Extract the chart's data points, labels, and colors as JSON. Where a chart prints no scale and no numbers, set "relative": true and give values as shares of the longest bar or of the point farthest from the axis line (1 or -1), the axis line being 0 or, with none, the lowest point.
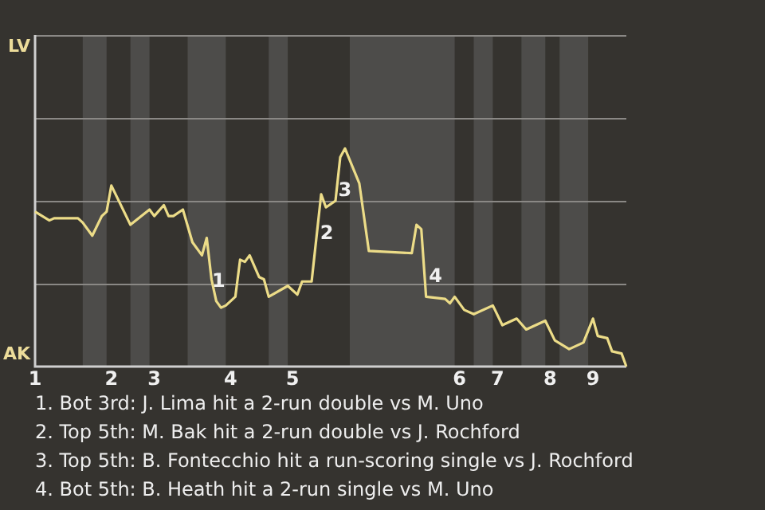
{
  "chart_data": {
    "type": "line",
    "relative": true,
    "categories": [
      "1",
      null,
      null,
      null,
      null,
      null,
      null,
      null,
      null,
      null,
      null,
      null,
      null,
      null,
      null,
      null,
      "2",
      null,
      null,
      null,
      null,
      null,
      null,
      null,
      null,
      "3",
      null,
      null,
      null,
      null,
      null,
      null,
      null,
      null,
      null,
      null,
      null,
      null,
      null,
      null,
      null,
      "4",
      null,
      null,
      null,
      null,
      null,
      null,
      null,
      null,
      null,
      null,
      null,
      null,
      "5",
      null,
      null,
      null,
      null,
      null,
      null,
      null,
      null,
      null,
      null,
      null,
      null,
      null,
      null,
      null,
      null,
      null,
      null,
      null,
      null,
      null,
      null,
      null,
      null,
      null,
      null,
      null,
      null,
      null,
      null,
      null,
      null,
      null,
      null,
      "6",
      null,
      null,
      null,
      null,
      null,
      null,
      null,
      "7",
      null,
      null,
      null,
      null,
      null,
      null,
      null,
      null,
      null,
      null,
      "8",
      null,
      null,
      null,
      null,
      null,
      null,
      null,
      null,
      "9",
      null,
      null,
      null,
      null,
      null,
      null,
      null
    ],
    "series": [
      {
        "color": "#ecdc88",
        "values": [
          0.71,
          null,
          null,
          0.67,
          0.68,
          null,
          null,
          null,
          null,
          0.68,
          0.66,
          null,
          0.6,
          null,
          0.69,
          0.71,
          0.83,
          null,
          null,
          null,
          0.65,
          null,
          null,
          null,
          0.72,
          0.69,
          null,
          0.74,
          0.69,
          0.69,
          null,
          0.72,
          null,
          0.57,
          null,
          0.51,
          0.59,
          0.4,
          0.3,
          0.27,
          0.28,
          null,
          0.32,
          0.49,
          0.48,
          0.51,
          null,
          0.41,
          0.4,
          0.32,
          null,
          null,
          null,
          0.37,
          null,
          0.33,
          0.39,
          null,
          0.39,
          null,
          0.79,
          0.73,
          null,
          0.76,
          0.96,
          1,
          null,
          null,
          0.84,
          null,
          0.53,
          null,
          null,
          null,
          null,
          null,
          null,
          null,
          null,
          0.52,
          0.65,
          0.63,
          0.32,
          null,
          null,
          null,
          0.31,
          0.29,
          0.32,
          null,
          0.26,
          null,
          0.24,
          null,
          null,
          null,
          0.28,
          null,
          0.19,
          null,
          null,
          0.22,
          null,
          0.17,
          null,
          null,
          null,
          0.21,
          null,
          0.12,
          null,
          null,
          0.08,
          null,
          null,
          0.11,
          null,
          0.22,
          0.14,
          null,
          0.13,
          0.07,
          null,
          0.06,
          0
        ]
      }
    ],
    "ref_lines": [
      {
        "axis": "y",
        "value": 0.38,
        "color": "#8a8885"
      },
      {
        "axis": "y",
        "value": 0.76,
        "color": "#8a8885"
      },
      {
        "axis": "y",
        "value": 1.14,
        "color": "#8a8885"
      },
      {
        "axis": "y",
        "value": 1.52,
        "color": "#8a8885"
      }
    ],
    "annotations": [
      "LV",
      "AK",
      "1",
      "2",
      "3",
      "4",
      "1. Bot 3rd: J. Lima hit a 2-run double vs M. Uno",
      "2. Top 5th: M. Bak hit a 2-run double vs J. Rochford",
      "3. Top 5th: B. Fontecchio hit a run-scoring single vs J. Rochford",
      "4. Bot 5th: B. Heath hit a 2-run single vs M. Uno"
    ]
  }
}
